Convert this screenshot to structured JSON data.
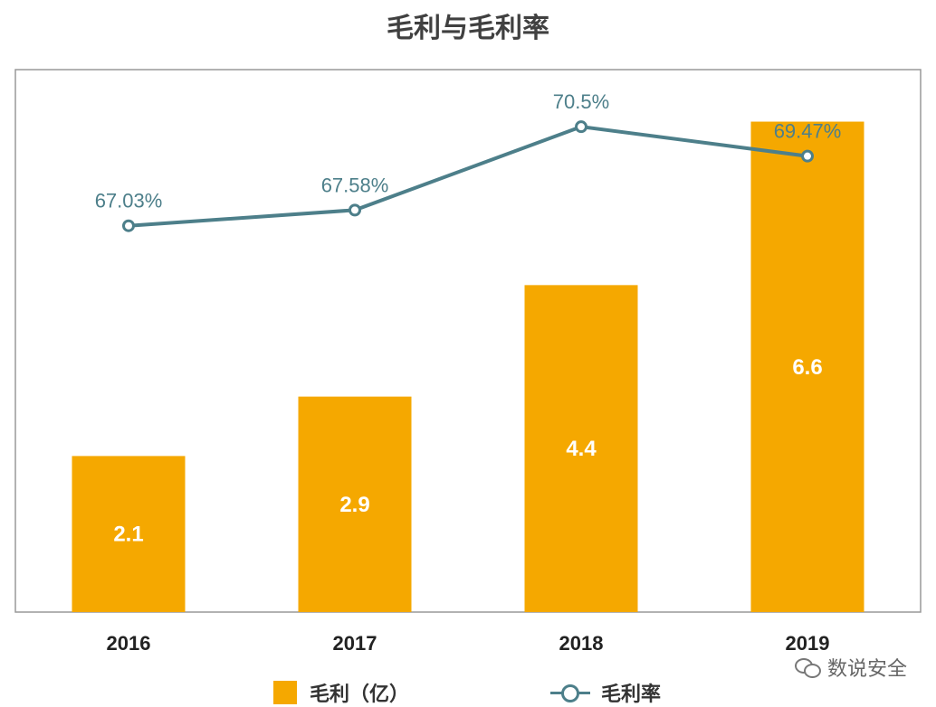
{
  "title": "毛利与毛利率",
  "watermark": "数说安全",
  "colors": {
    "bar": "#f5a800",
    "line": "#4d7f8a",
    "frame": "#999999"
  },
  "chart_data": {
    "type": "bar",
    "title": "毛利与毛利率",
    "categories": [
      "2016",
      "2017",
      "2018",
      "2019"
    ],
    "series": [
      {
        "name": "毛利（亿）",
        "type": "bar",
        "values": [
          2.1,
          2.9,
          4.4,
          6.6
        ],
        "labels": [
          "2.1",
          "2.9",
          "4.4",
          "6.6"
        ]
      },
      {
        "name": "毛利率",
        "type": "line",
        "values": [
          67.03,
          67.58,
          70.5,
          69.47
        ],
        "labels": [
          "67.03%",
          "67.58%",
          "70.5%",
          "69.47%"
        ]
      }
    ],
    "ylim": [
      0,
      7.3
    ],
    "y2lim": [
      53.5,
      72.5
    ],
    "grid": false,
    "legend": "bottom"
  }
}
